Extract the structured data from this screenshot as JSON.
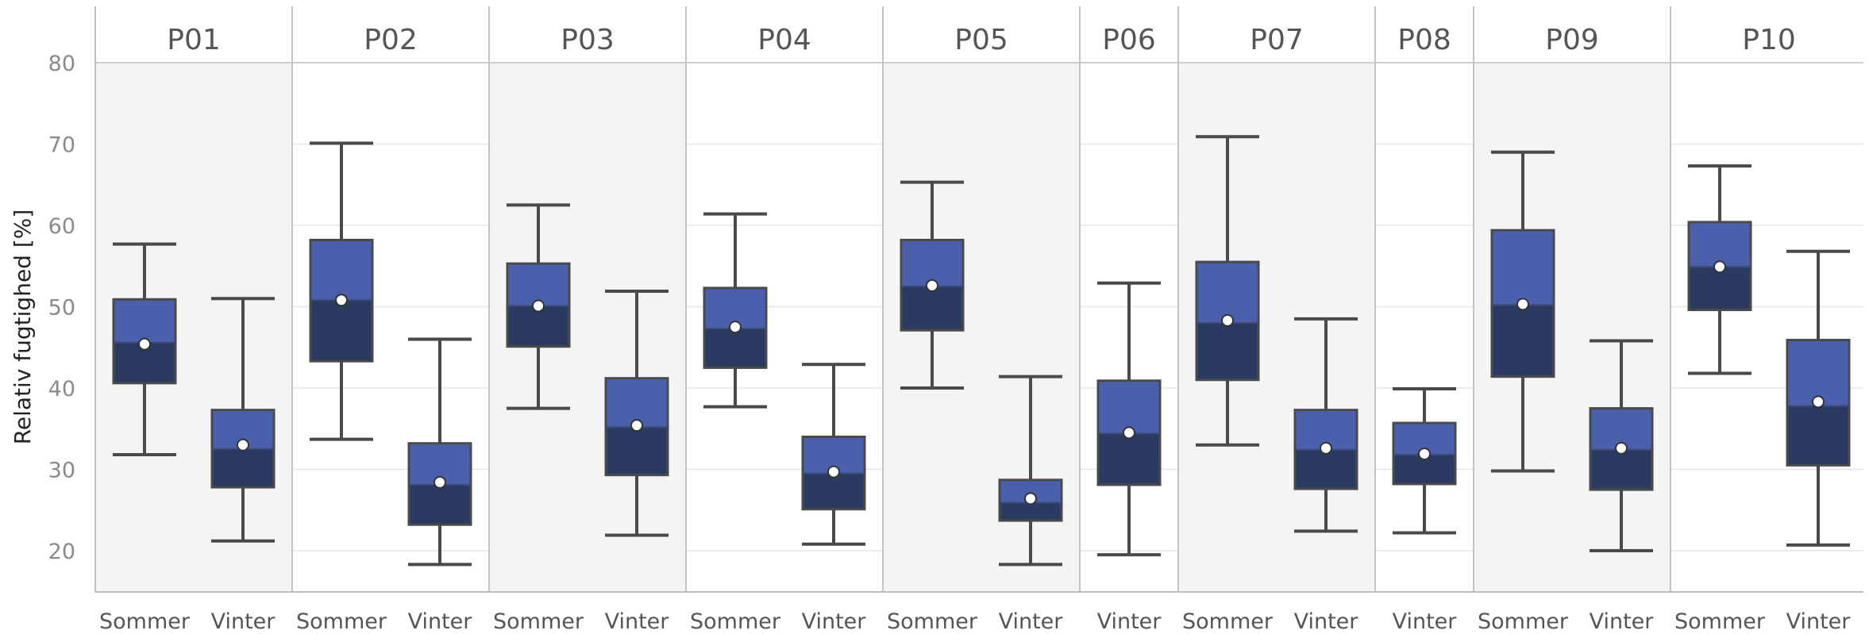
{
  "chart_data": {
    "type": "box",
    "ylabel": "Relativ fugtighed [%]",
    "ylim": [
      15,
      84
    ],
    "yticks": [
      20,
      30,
      40,
      50,
      60,
      70,
      80
    ],
    "grid": true,
    "colors": {
      "upper_box": "#4a60ad",
      "lower_box": "#2b3a61",
      "whisker": "#4a4a4a",
      "mean_marker": "#ffffff",
      "panel_shade": "#f4f4f4"
    },
    "panels": [
      {
        "title": "P01",
        "groups": [
          {
            "category": "Sommer",
            "whisker_low": 31.8,
            "q1": 40.6,
            "median": 45.6,
            "q3": 50.9,
            "whisker_high": 57.7,
            "mean": 45.4
          },
          {
            "category": "Vinter",
            "whisker_low": 21.2,
            "q1": 27.8,
            "median": 32.5,
            "q3": 37.3,
            "whisker_high": 51.0,
            "mean": 33.0
          }
        ]
      },
      {
        "title": "P02",
        "groups": [
          {
            "category": "Sommer",
            "whisker_low": 33.7,
            "q1": 43.3,
            "median": 50.8,
            "q3": 58.2,
            "whisker_high": 70.1,
            "mean": 50.8
          },
          {
            "category": "Vinter",
            "whisker_low": 18.3,
            "q1": 23.2,
            "median": 28.1,
            "q3": 33.2,
            "whisker_high": 46.0,
            "mean": 28.4
          }
        ]
      },
      {
        "title": "P03",
        "groups": [
          {
            "category": "Sommer",
            "whisker_low": 37.5,
            "q1": 45.1,
            "median": 50.1,
            "q3": 55.3,
            "whisker_high": 62.5,
            "mean": 50.1
          },
          {
            "category": "Vinter",
            "whisker_low": 21.9,
            "q1": 29.3,
            "median": 35.2,
            "q3": 41.2,
            "whisker_high": 51.9,
            "mean": 35.4
          }
        ]
      },
      {
        "title": "P04",
        "groups": [
          {
            "category": "Sommer",
            "whisker_low": 37.7,
            "q1": 42.5,
            "median": 47.3,
            "q3": 52.3,
            "whisker_high": 61.4,
            "mean": 47.5
          },
          {
            "category": "Vinter",
            "whisker_low": 20.8,
            "q1": 25.1,
            "median": 29.5,
            "q3": 34.0,
            "whisker_high": 42.9,
            "mean": 29.7
          }
        ]
      },
      {
        "title": "P05",
        "groups": [
          {
            "category": "Sommer",
            "whisker_low": 40.0,
            "q1": 47.1,
            "median": 52.5,
            "q3": 58.2,
            "whisker_high": 65.3,
            "mean": 52.6
          },
          {
            "category": "Vinter",
            "whisker_low": 18.3,
            "q1": 23.7,
            "median": 25.9,
            "q3": 28.7,
            "whisker_high": 41.4,
            "mean": 26.4
          }
        ]
      },
      {
        "title": "P06",
        "groups": [
          {
            "category": "Vinter",
            "whisker_low": 19.5,
            "q1": 28.1,
            "median": 34.4,
            "q3": 40.9,
            "whisker_high": 52.9,
            "mean": 34.5
          }
        ]
      },
      {
        "title": "P07",
        "groups": [
          {
            "category": "Sommer",
            "whisker_low": 33.0,
            "q1": 41.0,
            "median": 48.0,
            "q3": 55.5,
            "whisker_high": 70.9,
            "mean": 48.3
          },
          {
            "category": "Vinter",
            "whisker_low": 22.4,
            "q1": 27.6,
            "median": 32.4,
            "q3": 37.3,
            "whisker_high": 48.5,
            "mean": 32.6
          }
        ]
      },
      {
        "title": "P08",
        "groups": [
          {
            "category": "Vinter",
            "whisker_low": 22.2,
            "q1": 28.2,
            "median": 31.8,
            "q3": 35.7,
            "whisker_high": 39.9,
            "mean": 31.9
          }
        ]
      },
      {
        "title": "P09",
        "groups": [
          {
            "category": "Sommer",
            "whisker_low": 29.8,
            "q1": 41.4,
            "median": 50.2,
            "q3": 59.4,
            "whisker_high": 69.0,
            "mean": 50.3
          },
          {
            "category": "Vinter",
            "whisker_low": 20.0,
            "q1": 27.5,
            "median": 32.4,
            "q3": 37.5,
            "whisker_high": 45.8,
            "mean": 32.6
          }
        ]
      },
      {
        "title": "P10",
        "groups": [
          {
            "category": "Sommer",
            "whisker_low": 41.8,
            "q1": 49.6,
            "median": 54.9,
            "q3": 60.4,
            "whisker_high": 67.3,
            "mean": 54.9
          },
          {
            "category": "Vinter",
            "whisker_low": 20.7,
            "q1": 30.5,
            "median": 37.8,
            "q3": 45.9,
            "whisker_high": 56.8,
            "mean": 38.3
          }
        ]
      }
    ]
  }
}
